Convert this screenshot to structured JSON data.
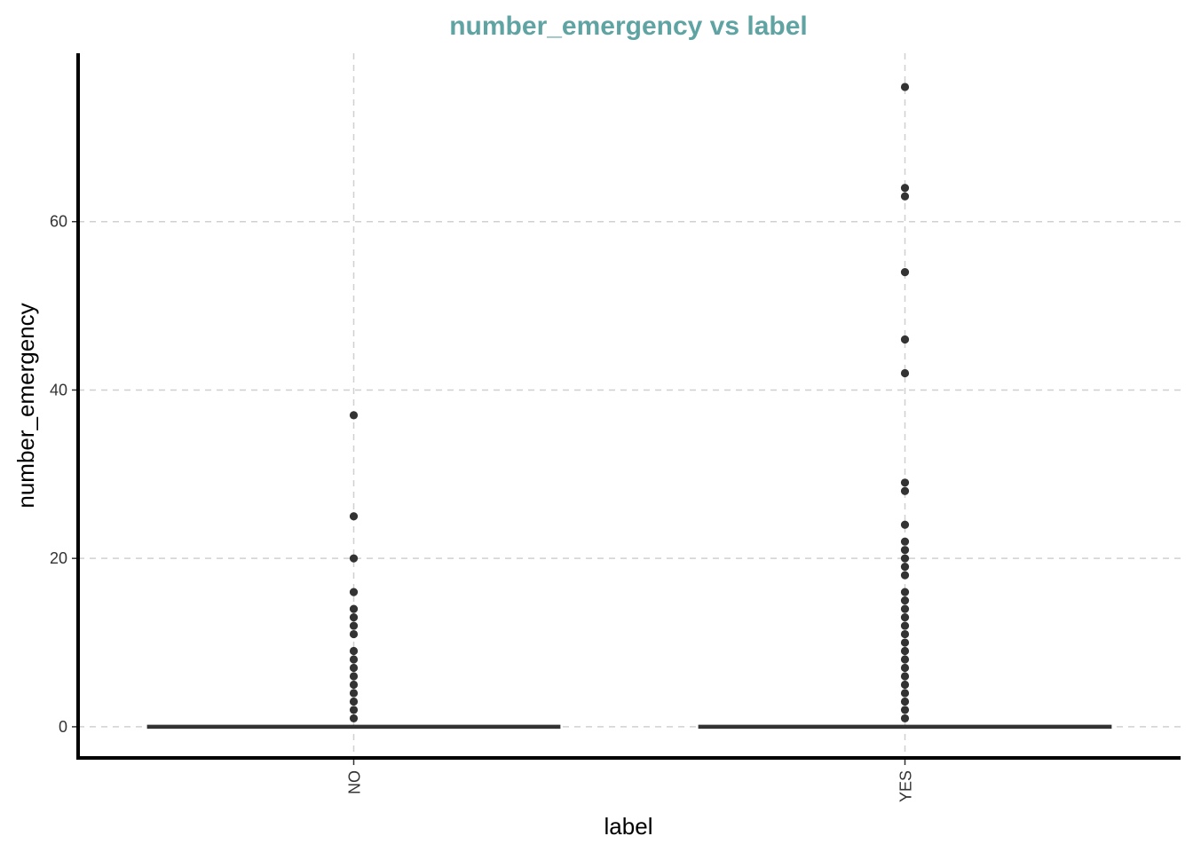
{
  "chart_data": {
    "type": "boxplot",
    "title": "number_emergency vs label",
    "xlabel": "label",
    "ylabel": "number_emergency",
    "categories": [
      "NO",
      "YES"
    ],
    "ylim": [
      -3.7,
      80
    ],
    "yticks": [
      0,
      20,
      40,
      60
    ],
    "grid": true,
    "colors": {
      "title": "#5fa3a3",
      "box": "#333333",
      "points": "#333333",
      "grid": "#d0d0d0"
    },
    "boxes": [
      {
        "category": "NO",
        "min": 0,
        "q1": 0,
        "median": 0,
        "q3": 0,
        "max": 0,
        "outliers": [
          1,
          2,
          3,
          4,
          5,
          6,
          7,
          8,
          9,
          11,
          12,
          13,
          14,
          16,
          20,
          25,
          37
        ]
      },
      {
        "category": "YES",
        "min": 0,
        "q1": 0,
        "median": 0,
        "q3": 0,
        "max": 0,
        "outliers": [
          1,
          2,
          3,
          4,
          5,
          6,
          7,
          8,
          9,
          10,
          11,
          12,
          13,
          14,
          15,
          16,
          18,
          19,
          20,
          21,
          22,
          24,
          28,
          29,
          42,
          46,
          54,
          63,
          64,
          76
        ]
      }
    ]
  }
}
